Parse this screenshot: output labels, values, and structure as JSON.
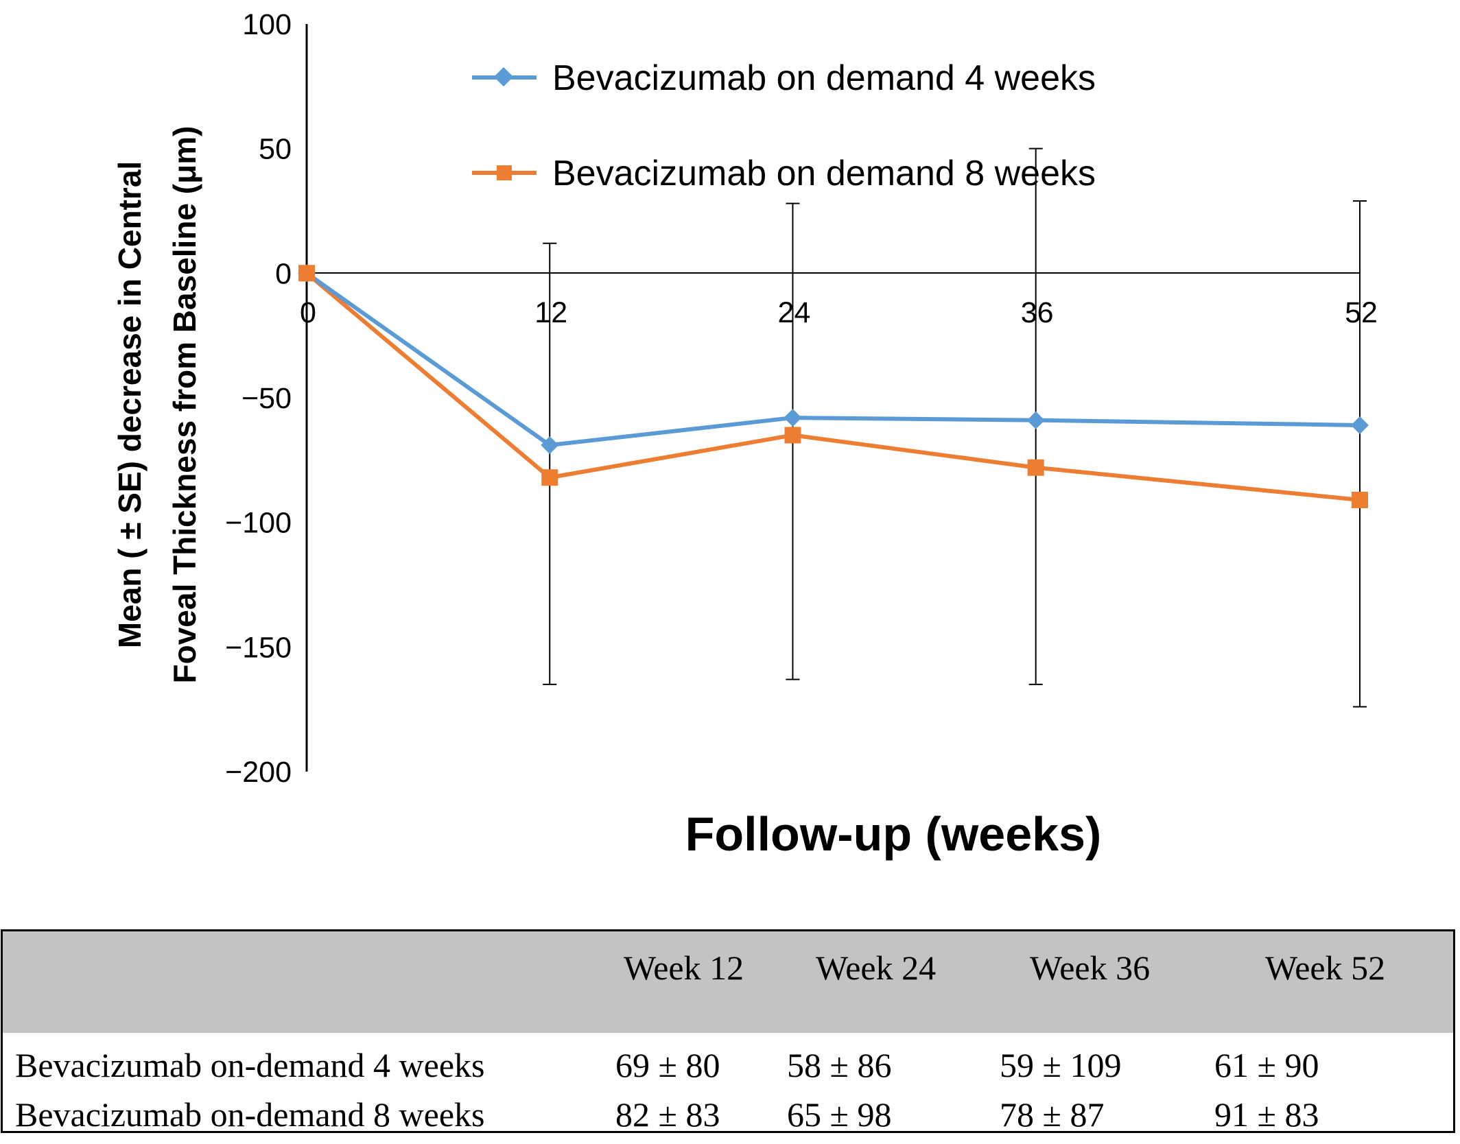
{
  "chart_data": {
    "type": "line",
    "title": "",
    "xlabel": "Follow-up (weeks)",
    "ylabel_line1": "Mean ( ± SE) decrease in Central",
    "ylabel_line2": "Foveal Thickness from Baseline (μm)",
    "x": [
      0,
      12,
      24,
      36,
      52
    ],
    "x_tick_labels": [
      "0",
      "12",
      "24",
      "36",
      "52"
    ],
    "ylim": [
      -200,
      100
    ],
    "y_ticks": [
      100,
      50,
      0,
      -50,
      -100,
      -150,
      -200
    ],
    "y_tick_labels": [
      "100",
      "50",
      "0",
      "−50",
      "−100",
      "−150",
      "−200"
    ],
    "legend_position": "top",
    "series": [
      {
        "name": "Bevacizumab on demand 4 weeks",
        "color": "#5b9bd5",
        "marker": "diamond",
        "values": [
          0,
          -69,
          -58,
          -59,
          -61
        ]
      },
      {
        "name": "Bevacizumab on demand 8 weeks",
        "color": "#ed7d31",
        "marker": "square",
        "values": [
          0,
          -82,
          -65,
          -78,
          -91
        ]
      }
    ],
    "error_bars": [
      {
        "x": 12,
        "upper": 12,
        "lower": -165
      },
      {
        "x": 24,
        "upper": 28,
        "lower": -163
      },
      {
        "x": 36,
        "upper": 50,
        "lower": -165
      },
      {
        "x": 52,
        "upper": 29,
        "lower": -174
      }
    ]
  },
  "table": {
    "headers": [
      "",
      "Week 12",
      "Week 24",
      "Week 36",
      "Week 52"
    ],
    "rows": [
      {
        "label": "Bevacizumab on-demand 4 weeks",
        "cells": [
          "69 ± 80",
          "58 ± 86",
          "59 ± 109",
          "61 ± 90"
        ]
      },
      {
        "label": "Bevacizumab on-demand 8 weeks",
        "cells": [
          "82 ± 83",
          "65 ± 98",
          "78 ± 87",
          "91 ± 83"
        ]
      }
    ]
  }
}
